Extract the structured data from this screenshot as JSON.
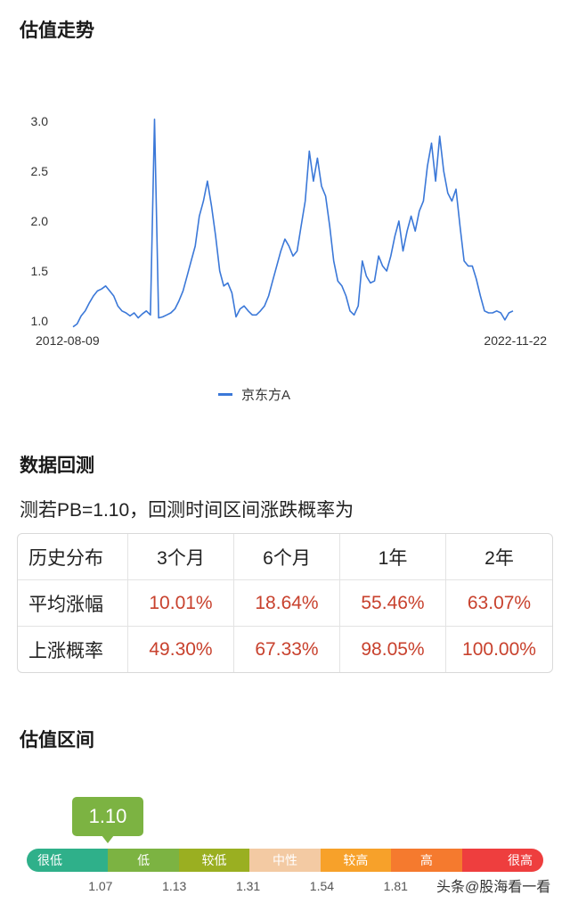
{
  "sections": {
    "trend_title": "估值走势",
    "backtest_title": "数据回测",
    "range_title": "估值区间"
  },
  "chart_data": {
    "type": "line",
    "title": "",
    "xlabel": "",
    "ylabel": "",
    "ylim": [
      0.93,
      3.0
    ],
    "yticks": [
      "1.0",
      "1.5",
      "2.0",
      "2.5",
      "3.0"
    ],
    "x_start_label": "2012-08-09",
    "x_end_label": "2022-11-22",
    "legend_position": "bottom",
    "series": [
      {
        "name": "京东方A",
        "color": "#3b78d8",
        "x_range": [
          "2012-08-09",
          "2022-11-22"
        ],
        "values": [
          0.94,
          0.97,
          1.05,
          1.1,
          1.18,
          1.25,
          1.3,
          1.32,
          1.35,
          1.3,
          1.25,
          1.15,
          1.1,
          1.08,
          1.05,
          1.08,
          1.03,
          1.07,
          1.1,
          1.06,
          3.02,
          1.03,
          1.04,
          1.06,
          1.08,
          1.12,
          1.2,
          1.3,
          1.45,
          1.6,
          1.75,
          2.05,
          2.2,
          2.4,
          2.15,
          1.85,
          1.5,
          1.35,
          1.38,
          1.28,
          1.04,
          1.12,
          1.15,
          1.1,
          1.06,
          1.06,
          1.1,
          1.15,
          1.25,
          1.4,
          1.55,
          1.7,
          1.82,
          1.75,
          1.65,
          1.7,
          1.95,
          2.2,
          2.7,
          2.4,
          2.63,
          2.35,
          2.25,
          1.95,
          1.6,
          1.4,
          1.35,
          1.25,
          1.1,
          1.06,
          1.15,
          1.6,
          1.45,
          1.38,
          1.4,
          1.65,
          1.55,
          1.5,
          1.65,
          1.85,
          2.0,
          1.7,
          1.9,
          2.05,
          1.9,
          2.1,
          2.2,
          2.55,
          2.78,
          2.4,
          2.85,
          2.5,
          2.28,
          2.2,
          2.32,
          1.95,
          1.6,
          1.55,
          1.55,
          1.42,
          1.25,
          1.1,
          1.08,
          1.08,
          1.1,
          1.08,
          1.01,
          1.08,
          1.1
        ]
      }
    ]
  },
  "backtest": {
    "headline": "测若PB=1.10，回测时间区间涨跌概率为",
    "header_row": [
      "历史分布",
      "3个月",
      "6个月",
      "1年",
      "2年"
    ],
    "rows": [
      {
        "label": "平均涨幅",
        "values": [
          "10.01%",
          "18.64%",
          "55.46%",
          "63.07%"
        ]
      },
      {
        "label": "上涨概率",
        "values": [
          "49.30%",
          "67.33%",
          "98.05%",
          "100.00%"
        ]
      }
    ],
    "value_color": "#c8412d"
  },
  "valuation_range": {
    "current_value": "1.10",
    "current_color": "#7cb342",
    "segments": [
      {
        "label": "很低",
        "color": "#2fb08a",
        "align": "left"
      },
      {
        "label": "低",
        "color": "#7cb342",
        "align": "center"
      },
      {
        "label": "较低",
        "color": "#9aaf21",
        "align": "center"
      },
      {
        "label": "中性",
        "color": "#f3caa3",
        "align": "center"
      },
      {
        "label": "较高",
        "color": "#f7a12a",
        "align": "center"
      },
      {
        "label": "高",
        "color": "#f57a2e",
        "align": "center"
      },
      {
        "label": "很高",
        "color": "#ee3e3e",
        "align": "right"
      }
    ],
    "thresholds": [
      "1.07",
      "1.13",
      "1.31",
      "1.54",
      "1.81"
    ]
  },
  "watermark": "头条@股海看一看"
}
